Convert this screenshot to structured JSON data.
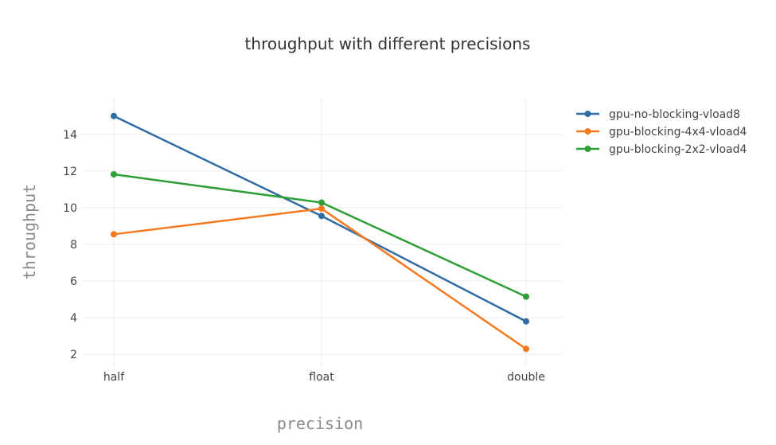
{
  "chart_data": {
    "type": "line",
    "title": "throughput with different precisions",
    "xlabel": "precision",
    "ylabel": "throughput",
    "categories": [
      "half",
      "float",
      "double"
    ],
    "y_ticks": [
      2,
      4,
      6,
      8,
      10,
      12,
      14
    ],
    "ylim": [
      1.4,
      15.9
    ],
    "grid": true,
    "legend_position": "top-right",
    "series": [
      {
        "name": "gpu-no-blocking-vload8",
        "color": "#2e6ca4",
        "values": [
          15.0,
          9.55,
          3.8
        ]
      },
      {
        "name": "gpu-blocking-4x4-vload4",
        "color": "#f5791f",
        "values": [
          8.55,
          9.95,
          2.3
        ]
      },
      {
        "name": "gpu-blocking-2x2-vload4",
        "color": "#2f9e37",
        "values": [
          11.82,
          10.28,
          5.15
        ]
      }
    ]
  }
}
